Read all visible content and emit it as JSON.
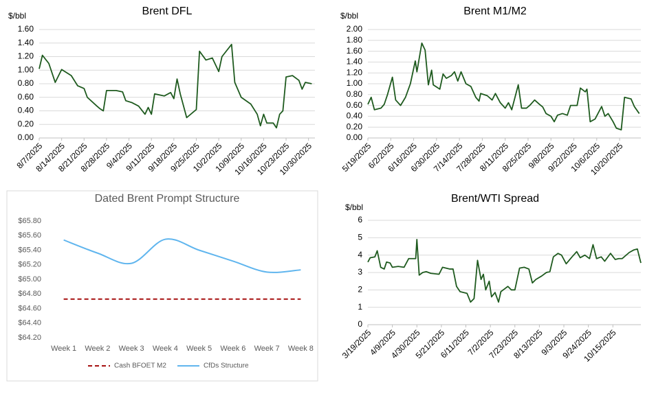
{
  "chart_data": [
    {
      "type": "line",
      "title": "Brent DFL",
      "y_label": "$/bbl",
      "color": "#1e5a1e",
      "grid": true,
      "x": [
        "8/7/2025",
        "8/8/2025",
        "8/10/2025",
        "8/12/2025",
        "8/14/2025",
        "8/17/2025",
        "8/19/2025",
        "8/21/2025",
        "8/22/2025",
        "8/25/2025",
        "8/26/2025",
        "8/27/2025",
        "8/28/2025",
        "8/31/2025",
        "9/2/2025",
        "9/3/2025",
        "9/5/2025",
        "9/7/2025",
        "9/9/2025",
        "9/10/2025",
        "9/11/2025",
        "9/12/2025",
        "9/15/2025",
        "9/17/2025",
        "9/18/2025",
        "9/19/2025",
        "9/20/2025",
        "9/22/2025",
        "9/25/2025",
        "9/26/2025",
        "9/28/2025",
        "9/30/2025",
        "10/2/2025",
        "10/3/2025",
        "10/6/2025",
        "10/7/2025",
        "10/9/2025",
        "10/12/2025",
        "10/14/2025",
        "10/15/2025",
        "10/16/2025",
        "10/17/2025",
        "10/19/2025",
        "10/20/2025",
        "10/21/2025",
        "10/22/2025",
        "10/23/2025",
        "10/25/2025",
        "10/27/2025",
        "10/28/2025",
        "10/29/2025",
        "10/31/2025"
      ],
      "values": [
        1.02,
        1.22,
        1.1,
        0.82,
        1.01,
        0.92,
        0.77,
        0.73,
        0.6,
        0.47,
        0.43,
        0.4,
        0.7,
        0.7,
        0.68,
        0.55,
        0.52,
        0.47,
        0.35,
        0.45,
        0.35,
        0.65,
        0.62,
        0.67,
        0.58,
        0.87,
        0.65,
        0.3,
        0.42,
        1.28,
        1.15,
        1.18,
        0.98,
        1.2,
        1.38,
        0.82,
        0.6,
        0.5,
        0.35,
        0.18,
        0.35,
        0.22,
        0.22,
        0.15,
        0.35,
        0.4,
        0.9,
        0.92,
        0.85,
        0.72,
        0.82,
        0.8
      ],
      "xlim": [
        "8/7/2025",
        "11/1/2025"
      ],
      "xticks": [
        "8/7/2025",
        "8/14/2025",
        "8/21/2025",
        "8/28/2025",
        "9/4/2025",
        "9/11/2025",
        "9/18/2025",
        "9/25/2025",
        "10/2/2025",
        "10/9/2025",
        "10/16/2025",
        "10/23/2025",
        "10/30/2025"
      ],
      "ylim": [
        0,
        1.6
      ],
      "yticks": [
        {
          "value": 0,
          "label": "0.00"
        },
        {
          "value": 0.2,
          "label": "0.20"
        },
        {
          "value": 0.4,
          "label": "0.40"
        },
        {
          "value": 0.6,
          "label": "0.60"
        },
        {
          "value": 0.8,
          "label": "0.80"
        },
        {
          "value": 1,
          "label": "1.00"
        },
        {
          "value": 1.2,
          "label": "1.20"
        },
        {
          "value": 1.4,
          "label": "1.40"
        },
        {
          "value": 1.6,
          "label": "1.60"
        }
      ]
    },
    {
      "type": "line",
      "title": "Brent M1/M2",
      "y_label": "$/bbl",
      "color": "#1e5a1e",
      "grid": true,
      "x": [
        "5/19/2025",
        "5/21/2025",
        "5/23/2025",
        "5/27/2025",
        "5/29/2025",
        "5/31/2025",
        "6/3/2025",
        "6/5/2025",
        "6/8/2025",
        "6/11/2025",
        "6/14/2025",
        "6/17/2025",
        "6/18/2025",
        "6/21/2025",
        "6/23/2025",
        "6/25/2025",
        "6/27/2025",
        "6/28/2025",
        "7/2/2025",
        "7/4/2025",
        "7/6/2025",
        "7/9/2025",
        "7/11/2025",
        "7/13/2025",
        "7/15/2025",
        "7/18/2025",
        "7/21/2025",
        "7/24/2025",
        "7/26/2025",
        "7/27/2025",
        "7/31/2025",
        "8/3/2025",
        "8/5/2025",
        "8/8/2025",
        "8/11/2025",
        "8/13/2025",
        "8/15/2025",
        "8/17/2025",
        "8/19/2025",
        "8/21/2025",
        "8/24/2025",
        "8/26/2025",
        "8/29/2025",
        "9/1/2025",
        "9/3/2025",
        "9/5/2025",
        "9/8/2025",
        "9/10/2025",
        "9/12/2025",
        "9/15/2025",
        "9/18/2025",
        "9/20/2025",
        "9/24/2025",
        "9/26/2025",
        "9/29/2025",
        "9/30/2025",
        "10/2/2025",
        "10/5/2025",
        "10/9/2025",
        "10/11/2025",
        "10/13/2025",
        "10/16/2025",
        "10/18/2025",
        "10/21/2025",
        "10/23/2025",
        "10/27/2025",
        "10/29/2025",
        "11/1/2025"
      ],
      "values": [
        0.62,
        0.75,
        0.52,
        0.55,
        0.62,
        0.8,
        1.12,
        0.7,
        0.6,
        0.75,
        1.0,
        1.42,
        1.22,
        1.75,
        1.62,
        0.98,
        1.25,
        0.98,
        0.9,
        1.18,
        1.1,
        1.15,
        1.22,
        1.05,
        1.22,
        1.0,
        0.95,
        0.75,
        0.68,
        0.82,
        0.78,
        0.7,
        0.82,
        0.65,
        0.55,
        0.65,
        0.52,
        0.75,
        0.98,
        0.55,
        0.55,
        0.6,
        0.7,
        0.62,
        0.57,
        0.45,
        0.4,
        0.3,
        0.42,
        0.45,
        0.42,
        0.6,
        0.6,
        0.92,
        0.85,
        0.9,
        0.3,
        0.35,
        0.58,
        0.4,
        0.45,
        0.3,
        0.18,
        0.15,
        0.75,
        0.72,
        0.58,
        0.45
      ],
      "xlim": [
        "5/19/2025",
        "11/2/2025"
      ],
      "xticks": [
        "5/19/2025",
        "6/2/2025",
        "6/16/2025",
        "6/30/2025",
        "7/14/2025",
        "7/28/2025",
        "8/11/2025",
        "8/25/2025",
        "9/8/2025",
        "9/22/2025",
        "10/6/2025",
        "10/20/2025"
      ],
      "ylim": [
        0,
        2
      ],
      "yticks": [
        {
          "value": 0,
          "label": "0.00"
        },
        {
          "value": 0.2,
          "label": "0.20"
        },
        {
          "value": 0.4,
          "label": "0.40"
        },
        {
          "value": 0.6,
          "label": "0.60"
        },
        {
          "value": 0.8,
          "label": "0.80"
        },
        {
          "value": 1,
          "label": "1.00"
        },
        {
          "value": 1.2,
          "label": "1.20"
        },
        {
          "value": 1.4,
          "label": "1.40"
        },
        {
          "value": 1.6,
          "label": "1.60"
        },
        {
          "value": 1.8,
          "label": "1.80"
        },
        {
          "value": 2,
          "label": "2.00"
        }
      ]
    },
    {
      "type": "line",
      "title": "Dated Brent Prompt Structure",
      "grid": false,
      "smooth": true,
      "legend": "bottom",
      "categories": [
        "Week 1",
        "Week 2",
        "Week 3",
        "Week 4",
        "Week 5",
        "Week 6",
        "Week 7",
        "Week 8"
      ],
      "series": [
        {
          "name": "Cash BFOET M2",
          "color": "#a50f0f",
          "dash": "dashed",
          "values": [
            64.73,
            64.73,
            64.73,
            64.73,
            64.73,
            64.73,
            64.73,
            64.73
          ]
        },
        {
          "name": "CfDs Structure",
          "color": "#5fb5ee",
          "dash": "solid",
          "values": [
            65.54,
            65.36,
            65.22,
            65.55,
            65.4,
            65.25,
            65.1,
            65.13
          ]
        }
      ],
      "ylim": [
        64.2,
        65.8
      ],
      "yticks": [
        {
          "value": 64.2,
          "label": "$64.20"
        },
        {
          "value": 64.4,
          "label": "$64.40"
        },
        {
          "value": 64.6,
          "label": "$64.60"
        },
        {
          "value": 64.8,
          "label": "$64.80"
        },
        {
          "value": 65,
          "label": "$65.00"
        },
        {
          "value": 65.2,
          "label": "$65.20"
        },
        {
          "value": 65.4,
          "label": "$65.40"
        },
        {
          "value": 65.6,
          "label": "$65.60"
        },
        {
          "value": 65.8,
          "label": "$65.80"
        }
      ]
    },
    {
      "type": "line",
      "title": "Brent/WTI Spread",
      "y_label": "$/bbl",
      "color": "#1e5a1e",
      "grid": true,
      "x": [
        "3/19/2025",
        "3/21/2025",
        "3/25/2025",
        "3/27/2025",
        "3/30/2025",
        "4/2/2025",
        "4/4/2025",
        "4/7/2025",
        "4/9/2025",
        "4/14/2025",
        "4/19/2025",
        "4/23/2025",
        "4/29/2025",
        "4/30/2025",
        "5/2/2025",
        "5/5/2025",
        "5/8/2025",
        "5/12/2025",
        "5/19/2025",
        "5/22/2025",
        "5/28/2025",
        "5/31/2025",
        "6/3/2025",
        "6/6/2025",
        "6/12/2025",
        "6/15/2025",
        "6/18/2025",
        "6/21/2025",
        "6/24/2025",
        "6/26/2025",
        "6/28/2025",
        "7/1/2025",
        "7/3/2025",
        "7/6/2025",
        "7/9/2025",
        "7/11/2025",
        "7/14/2025",
        "7/17/2025",
        "7/20/2025",
        "7/23/2025",
        "7/27/2025",
        "7/31/2025",
        "8/4/2025",
        "8/7/2025",
        "8/10/2025",
        "8/15/2025",
        "8/19/2025",
        "8/22/2025",
        "8/25/2025",
        "8/29/2025",
        "9/1/2025",
        "9/5/2025",
        "9/10/2025",
        "9/14/2025",
        "9/17/2025",
        "9/21/2025",
        "9/25/2025",
        "9/28/2025",
        "10/1/2025",
        "10/5/2025",
        "10/8/2025",
        "10/13/2025",
        "10/17/2025",
        "10/20/2025",
        "10/23/2025",
        "10/29/2025",
        "11/2/2025",
        "11/5/2025",
        "11/8/2025"
      ],
      "values": [
        3.6,
        3.85,
        3.9,
        4.25,
        3.3,
        3.2,
        3.6,
        3.55,
        3.3,
        3.35,
        3.3,
        3.8,
        3.8,
        4.9,
        2.85,
        3.0,
        3.05,
        2.95,
        2.9,
        3.3,
        3.2,
        3.2,
        2.2,
        1.9,
        1.8,
        1.3,
        1.5,
        3.7,
        2.6,
        2.9,
        2.0,
        2.5,
        1.6,
        1.85,
        1.3,
        1.9,
        2.05,
        2.2,
        2.0,
        2.0,
        3.25,
        3.3,
        3.2,
        2.4,
        2.6,
        2.8,
        3.0,
        3.05,
        3.9,
        4.1,
        4.0,
        3.5,
        3.9,
        4.2,
        3.85,
        4.0,
        3.8,
        4.6,
        3.8,
        3.9,
        3.65,
        4.1,
        3.75,
        3.8,
        3.8,
        4.15,
        4.3,
        4.35,
        3.55
      ],
      "xlim": [
        "3/19/2025",
        "11/8/2025"
      ],
      "xticks": [
        "3/19/2025",
        "4/9/2025",
        "4/30/2025",
        "5/21/2025",
        "6/11/2025",
        "7/2/2025",
        "7/23/2025",
        "8/13/2025",
        "9/3/2025",
        "9/24/2025",
        "10/15/2025"
      ],
      "ylim": [
        0,
        6
      ],
      "yticks": [
        0,
        1,
        2,
        3,
        4,
        5,
        6
      ]
    }
  ]
}
